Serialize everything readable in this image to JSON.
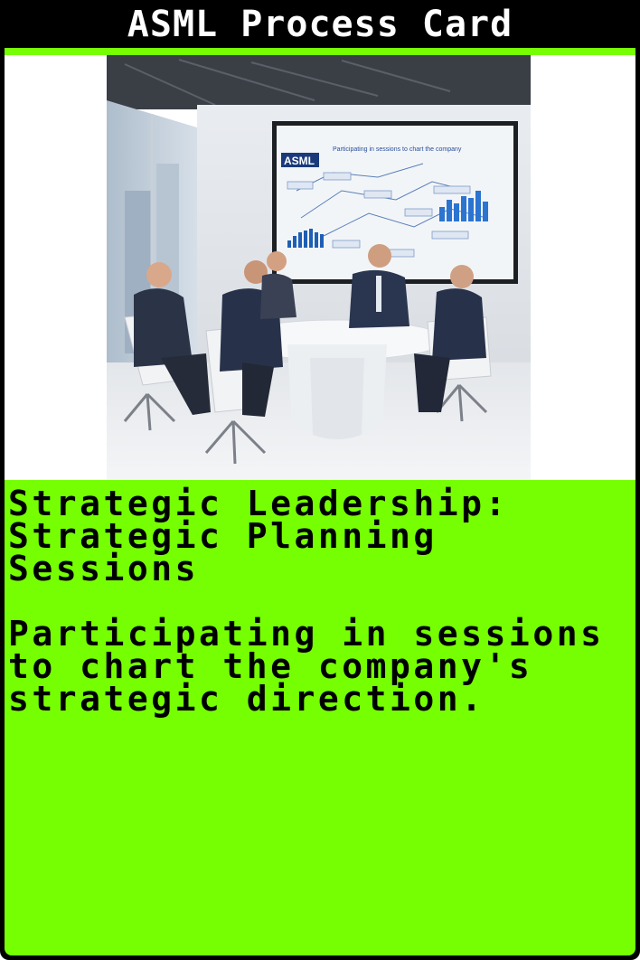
{
  "header": {
    "title": "ASML Process Card"
  },
  "image": {
    "screen_logo": "ASML",
    "screen_heading": "Participating in sessions to chart the company"
  },
  "card": {
    "title": "Strategic Leadership: Strategic Planning Sessions",
    "description": "Participating in sessions to chart the company's strategic direction."
  },
  "colors": {
    "accent": "#76ff03",
    "frame": "#000000",
    "text": "#000000",
    "header_text": "#ffffff"
  }
}
